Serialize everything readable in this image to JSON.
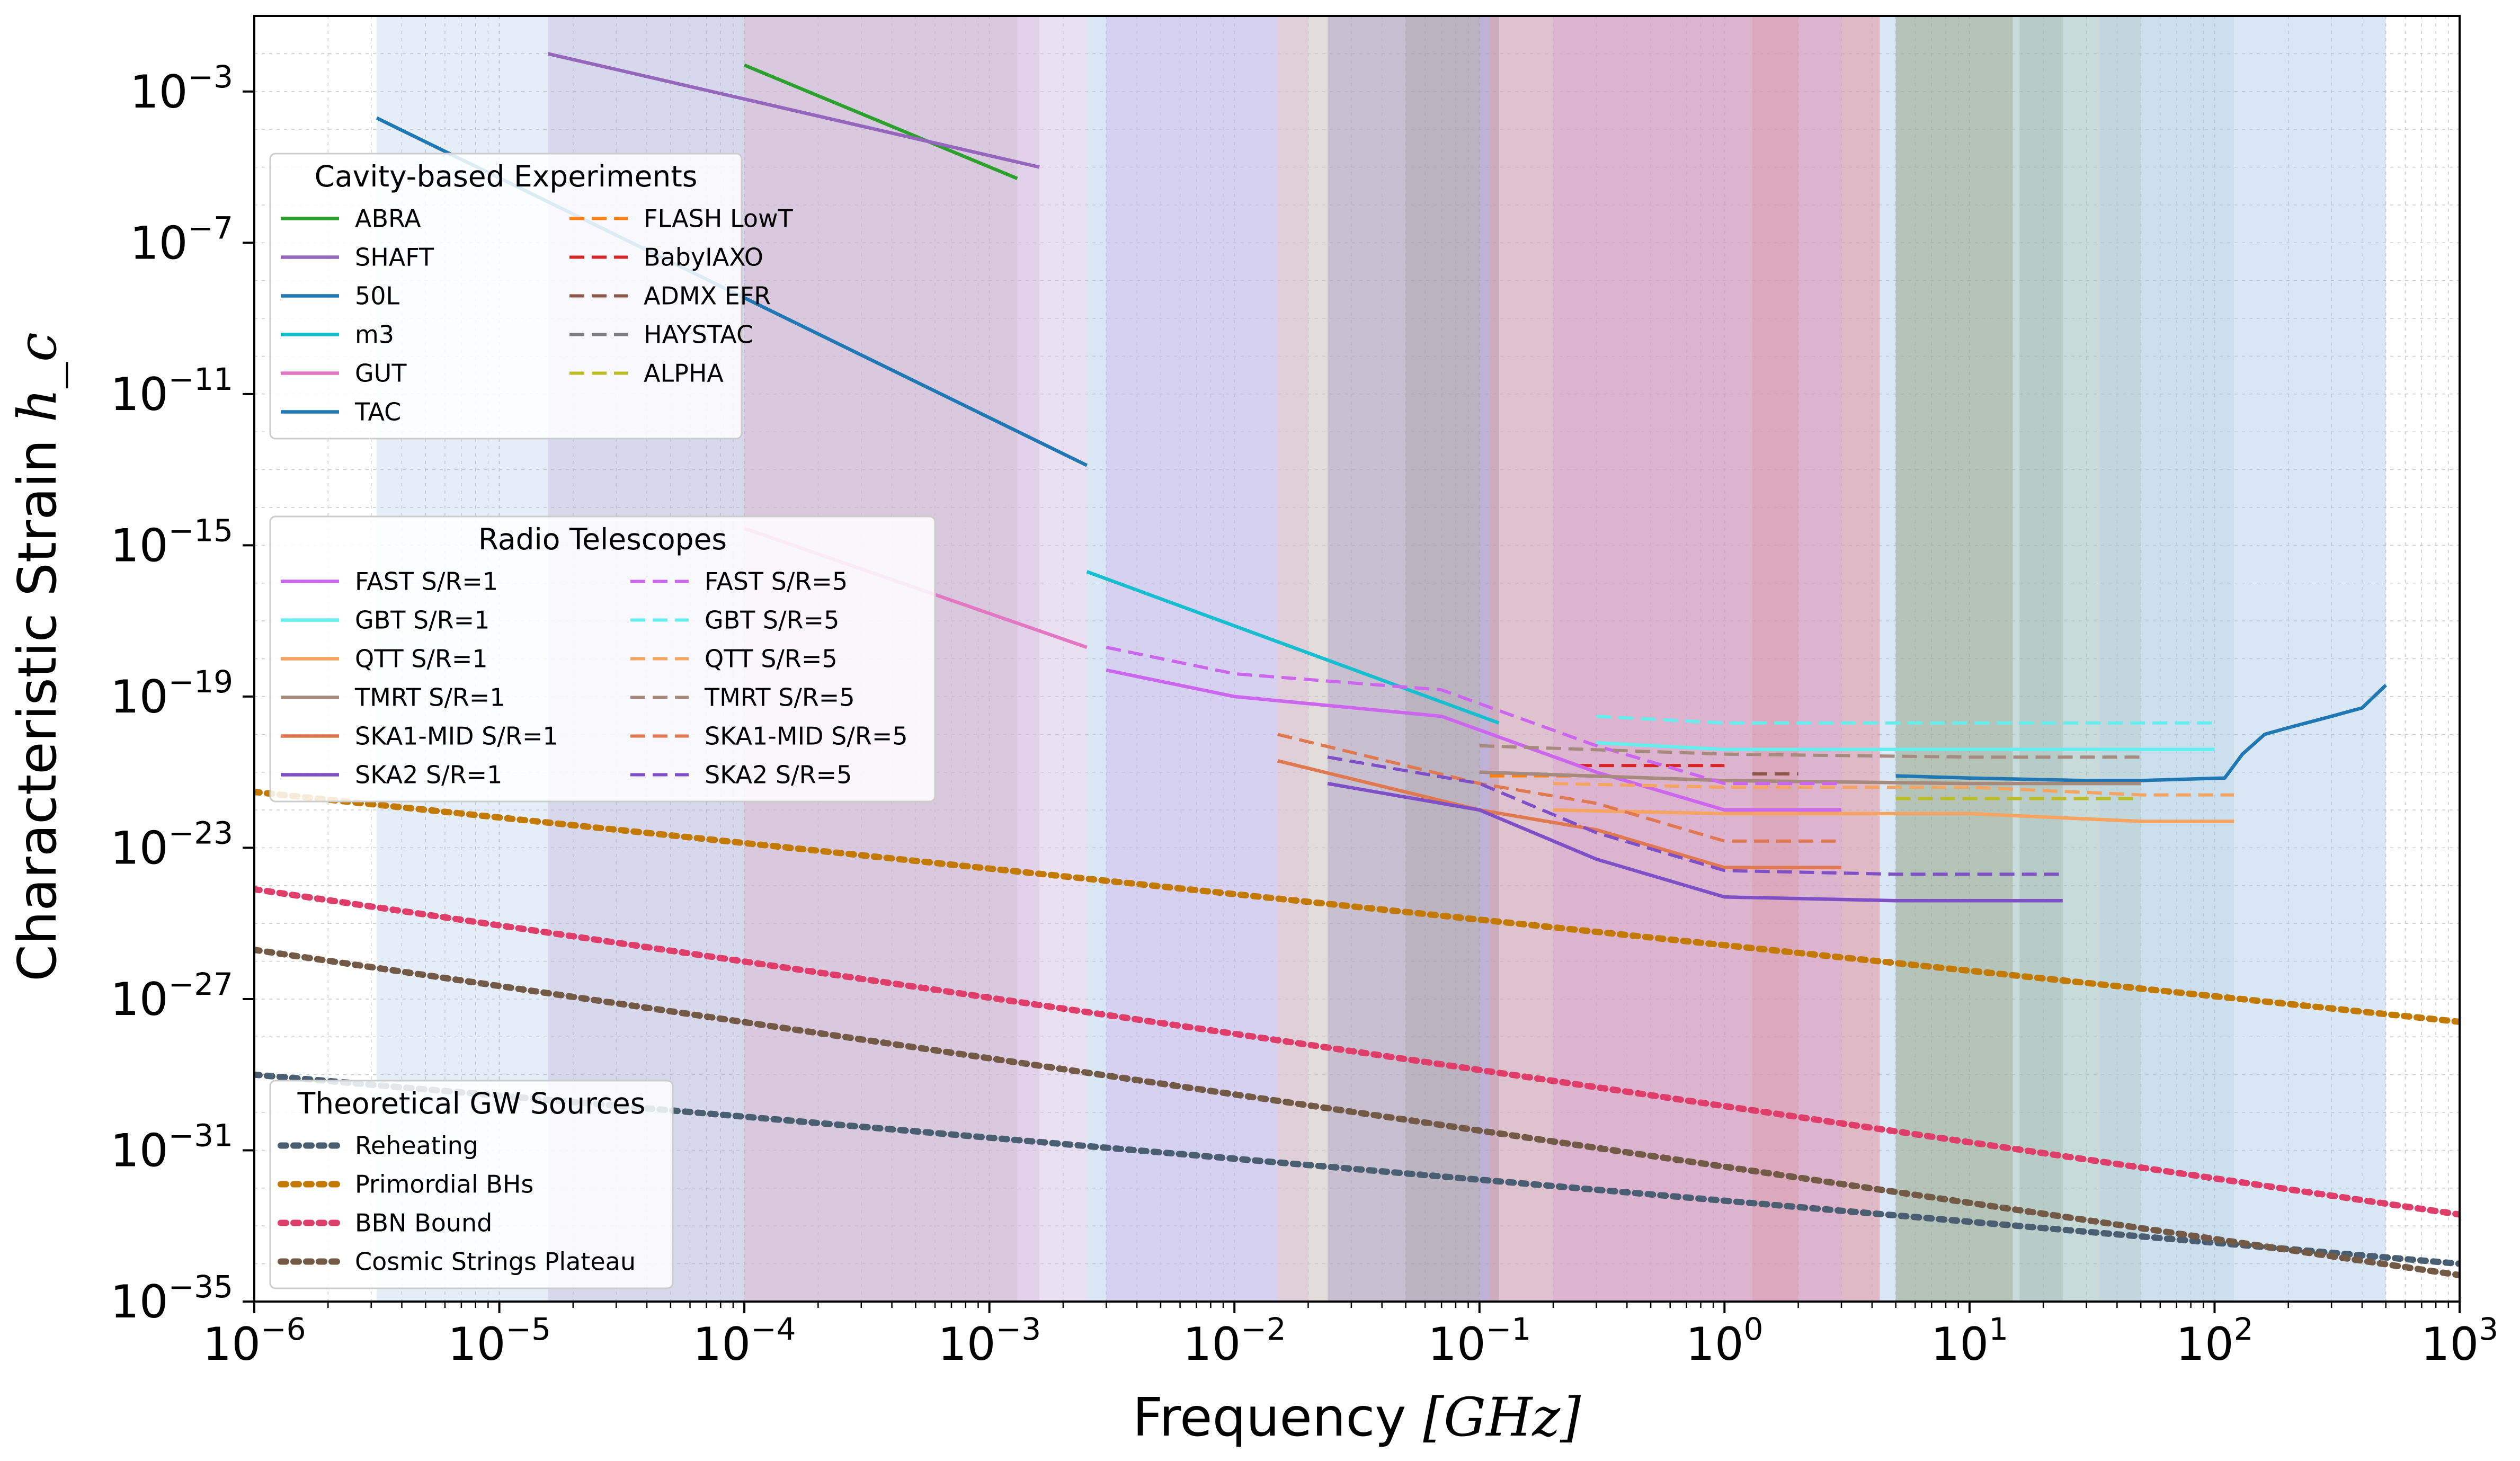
{
  "chart_data": {
    "type": "line",
    "xlabel": "Frequency",
    "xlabel_unit": "[GHz]",
    "ylabel": "Characteristic Strain",
    "ylabel_symbol": "h_c",
    "x_scale": "log",
    "y_scale": "log",
    "xlim": [
      1e-06,
      1000.0
    ],
    "ylim": [
      1e-35,
      0.1
    ],
    "grid": true,
    "x_ticks": [
      {
        "base": "10",
        "exp": "−6",
        "value": 1e-06
      },
      {
        "base": "10",
        "exp": "−5",
        "value": 1e-05
      },
      {
        "base": "10",
        "exp": "−4",
        "value": 0.0001
      },
      {
        "base": "10",
        "exp": "−3",
        "value": 0.001
      },
      {
        "base": "10",
        "exp": "−2",
        "value": 0.01
      },
      {
        "base": "10",
        "exp": "−1",
        "value": 0.1
      },
      {
        "base": "10",
        "exp": "0",
        "value": 1
      },
      {
        "base": "10",
        "exp": "1",
        "value": 10
      },
      {
        "base": "10",
        "exp": "2",
        "value": 100
      },
      {
        "base": "10",
        "exp": "3",
        "value": 1000
      }
    ],
    "y_ticks": [
      {
        "base": "10",
        "exp": "−3",
        "value": 0.001
      },
      {
        "base": "10",
        "exp": "−7",
        "value": 1e-07
      },
      {
        "base": "10",
        "exp": "−11",
        "value": 1e-11
      },
      {
        "base": "10",
        "exp": "−15",
        "value": 1e-15
      },
      {
        "base": "10",
        "exp": "−19",
        "value": 1e-19
      },
      {
        "base": "10",
        "exp": "−23",
        "value": 1e-23
      },
      {
        "base": "10",
        "exp": "−27",
        "value": 1e-27
      },
      {
        "base": "10",
        "exp": "−31",
        "value": 1e-31
      },
      {
        "base": "10",
        "exp": "−35",
        "value": 1e-35
      }
    ],
    "shaded_regions": [
      {
        "x": [
          3.16e-06,
          500.0
        ],
        "color": "#aac8e6",
        "alpha": 0.3
      },
      {
        "x": [
          1.58e-05,
          0.0016
        ],
        "color": "#b9a6d6",
        "alpha": 0.3
      },
      {
        "x": [
          0.0001,
          0.0013
        ],
        "color": "#9aa3a2",
        "alpha": 0.25
      },
      {
        "x": [
          0.0001,
          0.0025
        ],
        "color": "#f4c6e4",
        "alpha": 0.35
      },
      {
        "x": [
          0.0025,
          500.0
        ],
        "color": "#a9c6e4",
        "alpha": 0.2
      },
      {
        "x": [
          0.003,
          0.02
        ],
        "color": "#d3b8ee",
        "alpha": 0.45
      },
      {
        "x": [
          0.015,
          0.1
        ],
        "color": "#f8c8a6",
        "alpha": 0.3
      },
      {
        "x": [
          0.024,
          0.12
        ],
        "color": "#8a80b8",
        "alpha": 0.3
      },
      {
        "x": [
          0.05,
          0.12
        ],
        "color": "#8a8080",
        "alpha": 0.2
      },
      {
        "x": [
          0.11,
          4.3
        ],
        "color": "#f0a070",
        "alpha": 0.35
      },
      {
        "x": [
          0.2,
          4.3
        ],
        "color": "#d98acb",
        "alpha": 0.3
      },
      {
        "x": [
          0.1,
          3
        ],
        "color": "#d8a2ee",
        "alpha": 0.25
      },
      {
        "x": [
          1.3,
          2.0
        ],
        "color": "#d88f8f",
        "alpha": 0.3
      },
      {
        "x": [
          5,
          15
        ],
        "color": "#8a8a6a",
        "alpha": 0.35
      },
      {
        "x": [
          16,
          24
        ],
        "color": "#8aa0a0",
        "alpha": 0.3
      },
      {
        "x": [
          5,
          50
        ],
        "color": "#a2c0a0",
        "alpha": 0.3
      },
      {
        "x": [
          34,
          120
        ],
        "color": "#b0d0e8",
        "alpha": 0.3
      }
    ],
    "series": [
      {
        "name": "ABRA",
        "group": "cavity",
        "color": "#2ca02c",
        "dash": "solid",
        "x": [
          0.0001,
          0.0013
        ],
        "y": [
          0.005,
          5e-06
        ]
      },
      {
        "name": "SHAFT",
        "group": "cavity",
        "color": "#9467bd",
        "dash": "solid",
        "x": [
          1.58e-05,
          0.0016
        ],
        "y": [
          0.01,
          1e-05
        ]
      },
      {
        "name": "50L",
        "group": "cavity",
        "color": "#1f77b4",
        "dash": "solid",
        "x": [
          3.16e-06,
          0.0025
        ],
        "y": [
          0.0002,
          1.3e-13
        ]
      },
      {
        "name": "m3",
        "group": "cavity",
        "color": "#17becf",
        "dash": "solid",
        "x": [
          0.0025,
          0.12
        ],
        "y": [
          2e-16,
          2e-20
        ]
      },
      {
        "name": "GUT",
        "group": "cavity",
        "color": "#e377c2",
        "dash": "solid",
        "x": [
          0.0001,
          0.0025
        ],
        "y": [
          2.8e-15,
          2e-18
        ]
      },
      {
        "name": "TAC",
        "group": "cavity",
        "color": "#1f77b4",
        "dash": "solid",
        "x": [
          5,
          10,
          30,
          50,
          110,
          130,
          160,
          200,
          300,
          400,
          500
        ],
        "y": [
          8e-22,
          7e-22,
          6e-22,
          6e-22,
          7e-22,
          3e-21,
          1e-20,
          1.5e-20,
          3e-20,
          5e-20,
          2e-19
        ]
      },
      {
        "name": "FLASH LowT",
        "group": "cavity",
        "color": "#ff7f0e",
        "dash": "dashed",
        "x": [
          0.11,
          0.3
        ],
        "y": [
          8e-22,
          8e-22
        ]
      },
      {
        "name": "BabyIAXO",
        "group": "cavity",
        "color": "#d62728",
        "dash": "dashed",
        "x": [
          0.25,
          1.0
        ],
        "y": [
          1.5e-21,
          1.5e-21
        ]
      },
      {
        "name": "ADMX EFR",
        "group": "cavity",
        "color": "#8c564b",
        "dash": "dashed",
        "x": [
          1.3,
          2.0
        ],
        "y": [
          9e-22,
          9e-22
        ]
      },
      {
        "name": "HAYSTAC",
        "group": "cavity",
        "color": "#7f7f7f",
        "dash": "dashed",
        "x": [
          2.0,
          4.3
        ],
        "y": [
          4e-21,
          4e-21
        ]
      },
      {
        "name": "ALPHA",
        "group": "cavity",
        "color": "#bcbd22",
        "dash": "dashed",
        "x": [
          5,
          50
        ],
        "y": [
          2e-22,
          2e-22
        ]
      },
      {
        "name": "FAST S/R=1",
        "group": "radio",
        "color": "#cc66ee",
        "dash": "solid",
        "x": [
          0.003,
          0.01,
          0.07,
          0.3,
          1,
          3
        ],
        "y": [
          5e-19,
          1e-19,
          3e-20,
          1e-21,
          1e-22,
          1e-22
        ]
      },
      {
        "name": "GBT S/R=1",
        "group": "radio",
        "color": "#66eeee",
        "dash": "solid",
        "x": [
          0.3,
          1,
          10,
          50,
          100
        ],
        "y": [
          6e-21,
          4e-21,
          4e-21,
          4e-21,
          4e-21
        ]
      },
      {
        "name": "QTT S/R=1",
        "group": "radio",
        "color": "#f6a462",
        "dash": "solid",
        "x": [
          0.2,
          1,
          10,
          50,
          120
        ],
        "y": [
          1e-22,
          8e-23,
          8e-23,
          5e-23,
          5e-23
        ]
      },
      {
        "name": "TMRT S/R=1",
        "group": "radio",
        "color": "#a58a7d",
        "dash": "solid",
        "x": [
          0.1,
          1,
          10,
          50
        ],
        "y": [
          1e-21,
          6e-22,
          5e-22,
          5e-22
        ]
      },
      {
        "name": "SKA1-MID S/R=1",
        "group": "radio",
        "color": "#e07850",
        "dash": "solid",
        "x": [
          0.015,
          0.1,
          0.3,
          1,
          3
        ],
        "y": [
          2e-21,
          1e-22,
          3e-23,
          3e-24,
          3e-24
        ]
      },
      {
        "name": "SKA2 S/R=1",
        "group": "radio",
        "color": "#7e4fc7",
        "dash": "solid",
        "x": [
          0.024,
          0.1,
          0.3,
          1,
          5,
          24
        ],
        "y": [
          5e-22,
          1e-22,
          5e-24,
          5e-25,
          4e-25,
          4e-25
        ]
      },
      {
        "name": "FAST S/R=5",
        "group": "radio",
        "color": "#cc66ee",
        "dash": "dashed",
        "x": [
          0.003,
          0.01,
          0.07,
          0.3,
          1,
          3
        ],
        "y": [
          2e-18,
          4e-19,
          1.5e-19,
          5e-21,
          5e-22,
          5e-22
        ]
      },
      {
        "name": "GBT S/R=5",
        "group": "radio",
        "color": "#66eeee",
        "dash": "dashed",
        "x": [
          0.3,
          1,
          10,
          50,
          100
        ],
        "y": [
          3e-20,
          2e-20,
          2e-20,
          2e-20,
          2e-20
        ]
      },
      {
        "name": "QTT S/R=5",
        "group": "radio",
        "color": "#f6a462",
        "dash": "dashed",
        "x": [
          0.2,
          1,
          10,
          50,
          120
        ],
        "y": [
          5e-22,
          4e-22,
          4e-22,
          2.5e-22,
          2.5e-22
        ]
      },
      {
        "name": "TMRT S/R=5",
        "group": "radio",
        "color": "#a58a7d",
        "dash": "dashed",
        "x": [
          0.1,
          1,
          10,
          50
        ],
        "y": [
          5e-21,
          3e-21,
          2.5e-21,
          2.5e-21
        ]
      },
      {
        "name": "SKA1-MID S/R=5",
        "group": "radio",
        "color": "#e07850",
        "dash": "dashed",
        "x": [
          0.015,
          0.1,
          0.3,
          1,
          3
        ],
        "y": [
          1e-20,
          5e-22,
          1.5e-22,
          1.5e-23,
          1.5e-23
        ]
      },
      {
        "name": "SKA2 S/R=5",
        "group": "radio",
        "color": "#7e4fc7",
        "dash": "dashed",
        "x": [
          0.024,
          0.1,
          0.3,
          1,
          5,
          24
        ],
        "y": [
          2.5e-21,
          5e-22,
          2.5e-23,
          2.5e-24,
          2e-24,
          2e-24
        ]
      },
      {
        "name": "Reheating",
        "group": "theory",
        "color": "#4a5e72",
        "dash": "dotted",
        "x": [
          1e-06,
          1000.0
        ],
        "y": [
          1e-29,
          1e-34
        ]
      },
      {
        "name": "Primordial BHs",
        "group": "theory",
        "color": "#c27a05",
        "dash": "dotted",
        "x": [
          1e-06,
          1000.0
        ],
        "y": [
          3e-22,
          2.5e-28
        ]
      },
      {
        "name": "BBN Bound",
        "group": "theory",
        "color": "#e03e6a",
        "dash": "dotted",
        "x": [
          1e-06,
          1000.0
        ],
        "y": [
          8e-25,
          2e-33
        ]
      },
      {
        "name": "Cosmic Strings Plateau",
        "group": "theory",
        "color": "#735a46",
        "dash": "dotted",
        "x": [
          1e-06,
          1000.0
        ],
        "y": [
          2e-26,
          5e-35
        ]
      }
    ],
    "legends": [
      {
        "title": "Cavity-based Experiments",
        "position": "upper-left",
        "columns": [
          [
            "ABRA",
            "SHAFT",
            "50L",
            "m3",
            "GUT",
            "TAC"
          ],
          [
            "FLASH LowT",
            "BabyIAXO",
            "ADMX EFR",
            "HAYSTAC",
            "ALPHA"
          ]
        ]
      },
      {
        "title": "Radio Telescopes",
        "position": "center-left",
        "columns": [
          [
            "FAST S/R=1",
            "GBT S/R=1",
            "QTT S/R=1",
            "TMRT S/R=1",
            "SKA1-MID S/R=1",
            "SKA2 S/R=1"
          ],
          [
            "FAST S/R=5",
            "GBT S/R=5",
            "QTT S/R=5",
            "TMRT S/R=5",
            "SKA1-MID S/R=5",
            "SKA2 S/R=5"
          ]
        ]
      },
      {
        "title": "Theoretical GW Sources",
        "position": "lower-left",
        "columns": [
          [
            "Reheating",
            "Primordial BHs",
            "BBN Bound",
            "Cosmic Strings Plateau"
          ]
        ]
      }
    ]
  }
}
